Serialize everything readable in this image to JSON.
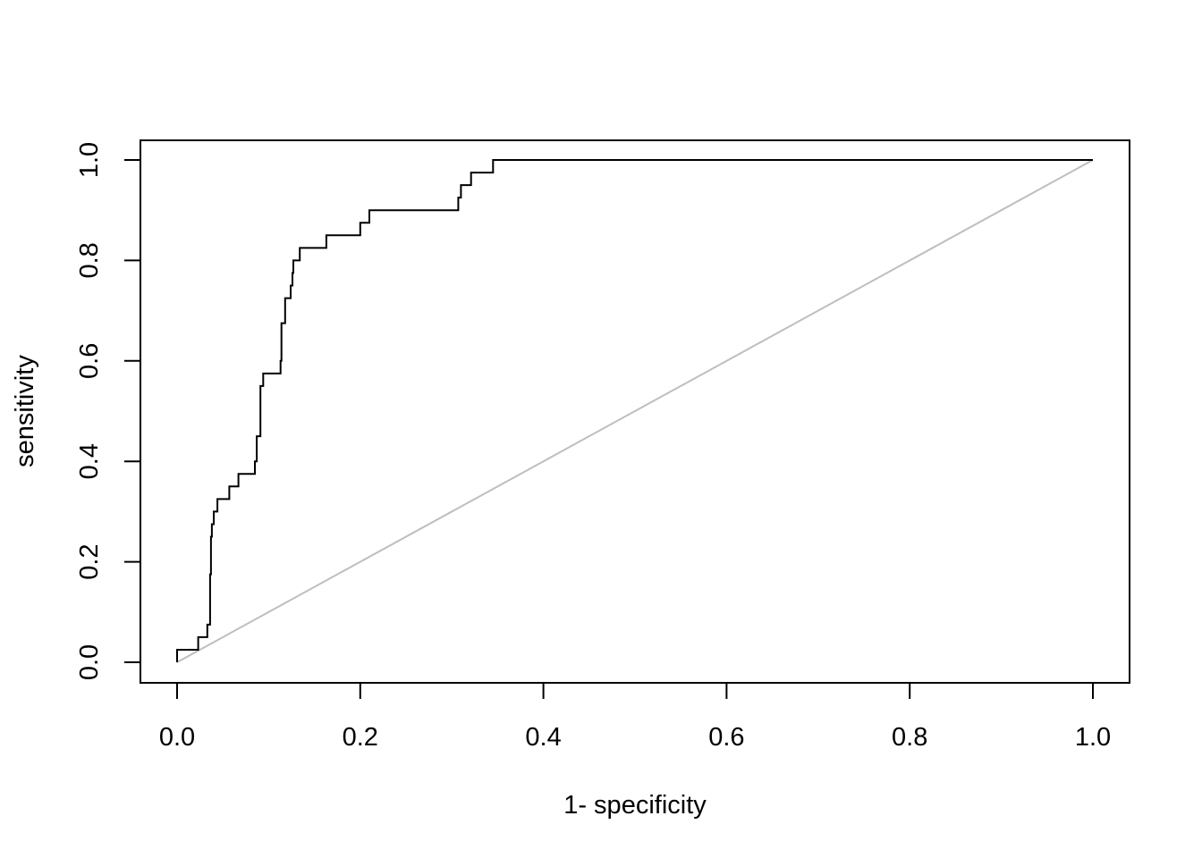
{
  "chart_data": {
    "type": "line",
    "title": "",
    "xlabel": "1- specificity",
    "ylabel": "sensitivity",
    "xlim": [
      0,
      1
    ],
    "ylim": [
      0,
      1
    ],
    "x_ticks": [
      "0.0",
      "0.2",
      "0.4",
      "0.6",
      "0.8",
      "1.0"
    ],
    "y_ticks": [
      "0.0",
      "0.2",
      "0.4",
      "0.6",
      "0.8",
      "1.0"
    ],
    "grid": false,
    "legend": "none",
    "series": [
      {
        "color": "#000000",
        "step": true,
        "points": [
          [
            0.0,
            0.0
          ],
          [
            0.0,
            0.025
          ],
          [
            0.023,
            0.025
          ],
          [
            0.023,
            0.05
          ],
          [
            0.033,
            0.05
          ],
          [
            0.033,
            0.075
          ],
          [
            0.036,
            0.075
          ],
          [
            0.036,
            0.175
          ],
          [
            0.037,
            0.175
          ],
          [
            0.037,
            0.25
          ],
          [
            0.038,
            0.25
          ],
          [
            0.038,
            0.275
          ],
          [
            0.04,
            0.275
          ],
          [
            0.04,
            0.3
          ],
          [
            0.044,
            0.3
          ],
          [
            0.044,
            0.325
          ],
          [
            0.057,
            0.325
          ],
          [
            0.057,
            0.35
          ],
          [
            0.067,
            0.35
          ],
          [
            0.067,
            0.375
          ],
          [
            0.085,
            0.375
          ],
          [
            0.085,
            0.4
          ],
          [
            0.087,
            0.4
          ],
          [
            0.087,
            0.45
          ],
          [
            0.091,
            0.45
          ],
          [
            0.091,
            0.55
          ],
          [
            0.094,
            0.55
          ],
          [
            0.094,
            0.575
          ],
          [
            0.113,
            0.575
          ],
          [
            0.113,
            0.6
          ],
          [
            0.114,
            0.6
          ],
          [
            0.114,
            0.675
          ],
          [
            0.118,
            0.675
          ],
          [
            0.118,
            0.725
          ],
          [
            0.124,
            0.725
          ],
          [
            0.124,
            0.75
          ],
          [
            0.126,
            0.75
          ],
          [
            0.126,
            0.775
          ],
          [
            0.127,
            0.775
          ],
          [
            0.127,
            0.8
          ],
          [
            0.134,
            0.8
          ],
          [
            0.134,
            0.825
          ],
          [
            0.163,
            0.825
          ],
          [
            0.163,
            0.85
          ],
          [
            0.2,
            0.85
          ],
          [
            0.2,
            0.875
          ],
          [
            0.21,
            0.875
          ],
          [
            0.21,
            0.9
          ],
          [
            0.307,
            0.9
          ],
          [
            0.307,
            0.925
          ],
          [
            0.31,
            0.925
          ],
          [
            0.31,
            0.95
          ],
          [
            0.321,
            0.95
          ],
          [
            0.321,
            0.975
          ],
          [
            0.345,
            0.975
          ],
          [
            0.345,
            1.0
          ],
          [
            1.0,
            1.0
          ]
        ]
      },
      {
        "color": "#bebebe",
        "step": false,
        "points": [
          [
            0,
            0
          ],
          [
            1,
            1
          ]
        ]
      }
    ]
  }
}
